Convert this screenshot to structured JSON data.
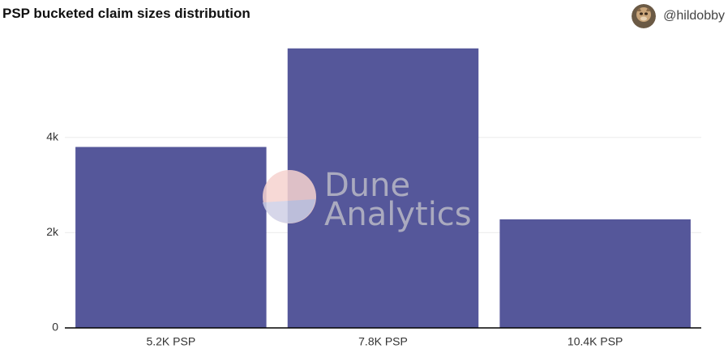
{
  "header": {
    "title": "PSP bucketed claim sizes distribution",
    "author": "@hildobby"
  },
  "watermark": {
    "line1": "Dune",
    "line2": "Analytics"
  },
  "colors": {
    "bar": "#55579a",
    "grid": "#ebebeb",
    "axis": "#000000"
  },
  "chart_data": {
    "type": "bar",
    "categories": [
      "5.2K PSP",
      "7.8K PSP",
      "10.4K PSP"
    ],
    "values": [
      3800,
      5870,
      2280
    ],
    "ylim": [
      0,
      5900
    ],
    "yticks": [
      0,
      2000,
      4000
    ],
    "ytick_labels": [
      "0",
      "2k",
      "4k"
    ],
    "xlabel": "",
    "ylabel": "",
    "grid": true,
    "legend": "none"
  }
}
